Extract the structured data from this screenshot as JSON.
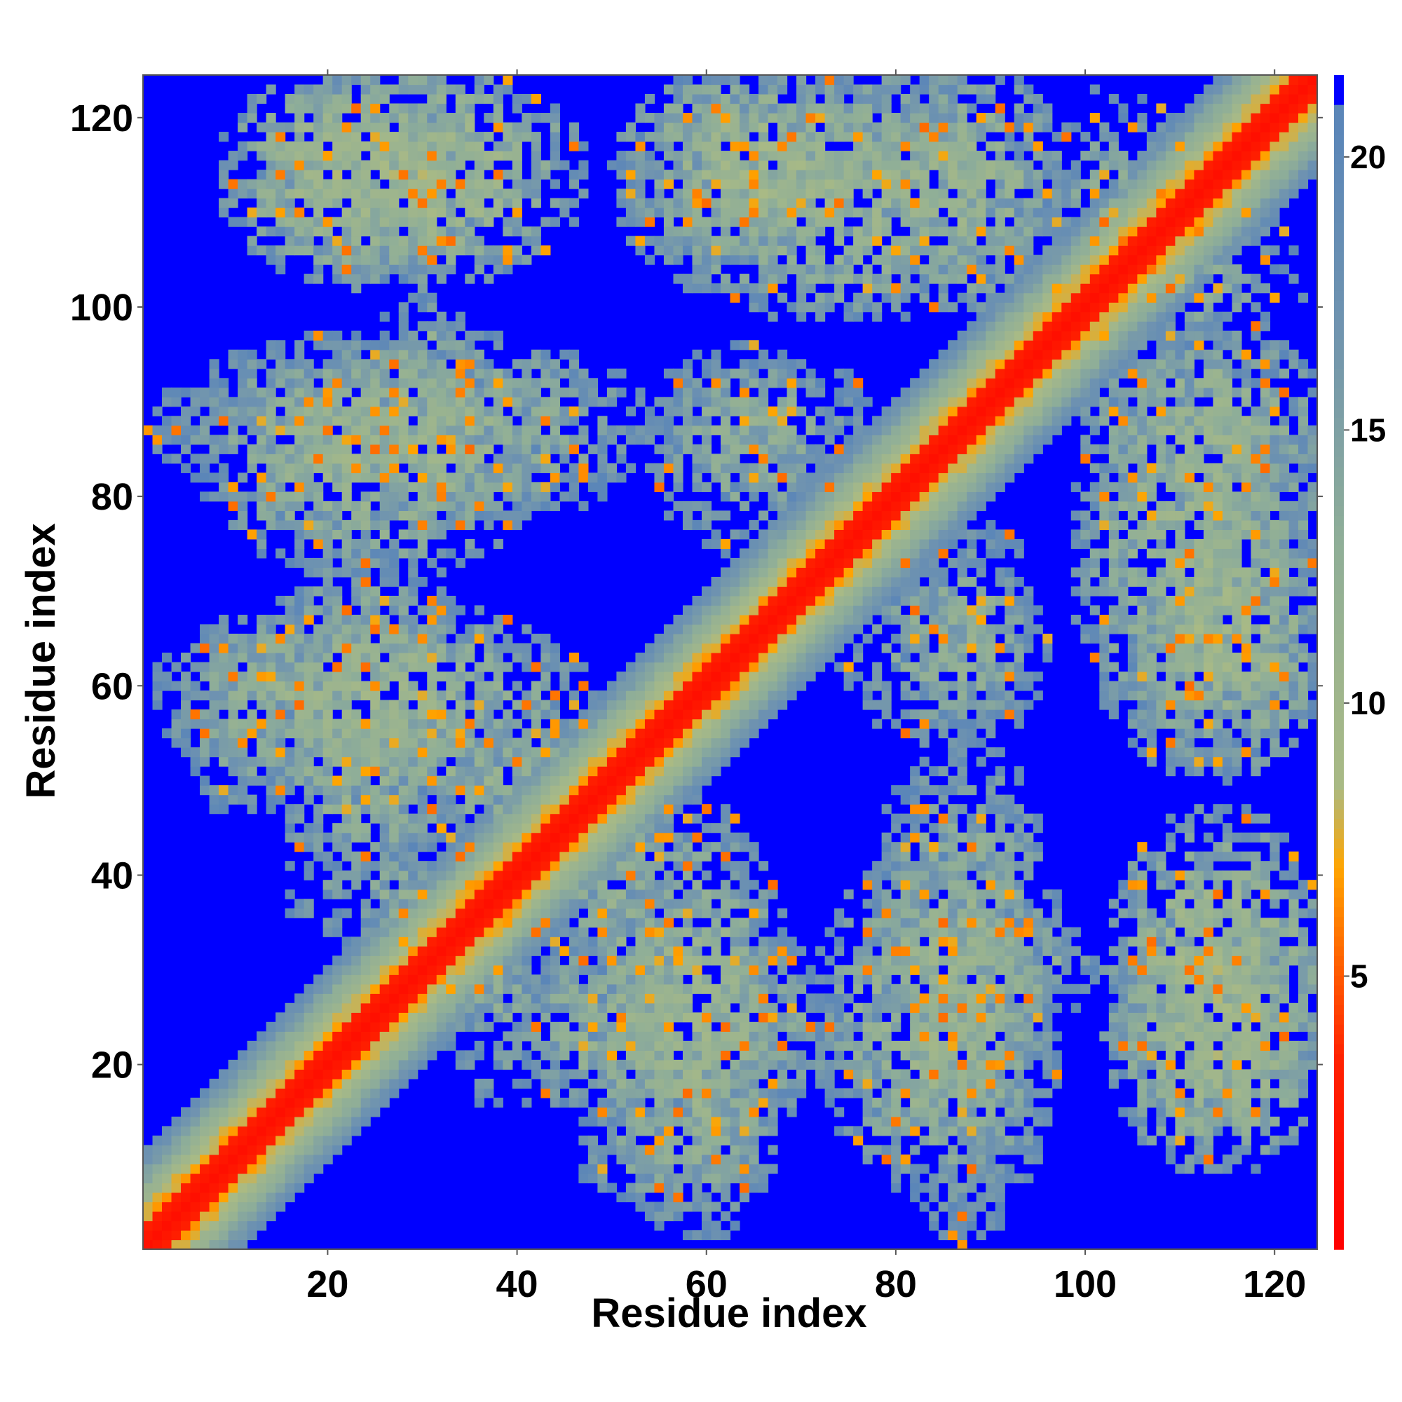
{
  "chart_data": {
    "type": "heatmap",
    "title": "",
    "xlabel": "Residue index",
    "ylabel": "Residue index",
    "xlim": [
      0.5,
      124.5
    ],
    "ylim": [
      0.5,
      124.5
    ],
    "n_residues": 124,
    "x_ticks": [
      20,
      40,
      60,
      80,
      100,
      120
    ],
    "y_ticks": [
      20,
      40,
      60,
      80,
      100,
      120
    ],
    "x_tick_labels": [
      "20",
      "40",
      "60",
      "80",
      "100",
      "120"
    ],
    "y_tick_labels": [
      "20",
      "40",
      "60",
      "80",
      "100",
      "120"
    ],
    "value_meaning": "pairwise residue distance (symmetric contact map)",
    "colorbar": {
      "range": [
        0,
        21.5
      ],
      "ticks": [
        5,
        10,
        15,
        20
      ],
      "tick_labels": [
        "5",
        "10",
        "15",
        "20"
      ],
      "stops": [
        {
          "value": 0,
          "color": "#ff0000"
        },
        {
          "value": 3.5,
          "color": "#ff2200"
        },
        {
          "value": 5.5,
          "color": "#ff6a00"
        },
        {
          "value": 7,
          "color": "#ffa500"
        },
        {
          "value": 8.5,
          "color": "#a9ba85"
        },
        {
          "value": 13,
          "color": "#8fae98"
        },
        {
          "value": 17,
          "color": "#6f93b0"
        },
        {
          "value": 20.5,
          "color": "#5b86b8"
        },
        {
          "value": 21.5,
          "color": "#0000ff"
        }
      ]
    },
    "diagonal": {
      "core_halfwidth": 2,
      "orange_halfwidth": 4,
      "band_halfwidth": 10
    },
    "contact_blocks": [
      {
        "x": [
          14,
          46
        ],
        "y": [
          104,
          124
        ],
        "d": 11.0,
        "density": 0.78
      },
      {
        "x": [
          52,
          80
        ],
        "y": [
          106,
          124
        ],
        "d": 11.0,
        "density": 0.8
      },
      {
        "x": [
          79,
          97
        ],
        "y": [
          101,
          124
        ],
        "d": 12.0,
        "density": 0.7
      },
      {
        "x": [
          3,
          54
        ],
        "y": [
          78,
          96
        ],
        "d": 12.5,
        "density": 0.78
      },
      {
        "x": [
          55,
          76
        ],
        "y": [
          81,
          94
        ],
        "d": 13.5,
        "density": 0.62
      },
      {
        "x": [
          3,
          46
        ],
        "y": [
          50,
          68
        ],
        "d": 12.0,
        "density": 0.78
      },
      {
        "x": [
          22,
          50
        ],
        "y": [
          44,
          58
        ],
        "d": 13.5,
        "density": 0.62
      },
      {
        "x": [
          16,
          40
        ],
        "y": [
          34,
          42
        ],
        "d": 14.5,
        "density": 0.55
      },
      {
        "x": [
          40,
          73
        ],
        "y": [
          14,
          34
        ],
        "d": 12.0,
        "density": 0.75
      },
      {
        "x": [
          48,
          64
        ],
        "y": [
          6,
          16
        ],
        "d": 13.5,
        "density": 0.72
      },
      {
        "x": [
          73,
          95
        ],
        "y": [
          8,
          42
        ],
        "d": 12.0,
        "density": 0.76
      },
      {
        "x": [
          88,
          100
        ],
        "y": [
          26,
          34
        ],
        "d": 13.0,
        "density": 0.6
      },
      {
        "x": [
          100,
          124
        ],
        "y": [
          52,
          96
        ],
        "d": 12.0,
        "density": 0.76
      },
      {
        "x": [
          104,
          124
        ],
        "y": [
          10,
          36
        ],
        "d": 11.0,
        "density": 0.78
      },
      {
        "x": [
          75,
          95
        ],
        "y": [
          55,
          72
        ],
        "d": 13.5,
        "density": 0.6
      },
      {
        "x": [
          97,
          122
        ],
        "y": [
          97,
          110
        ],
        "d": 14.0,
        "density": 0.55
      }
    ]
  }
}
